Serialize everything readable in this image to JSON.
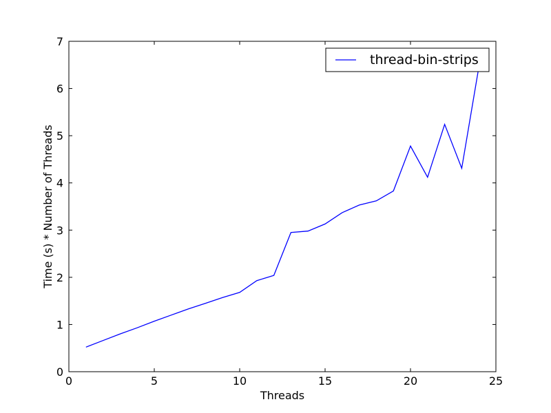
{
  "chart_data": {
    "type": "line",
    "title": "",
    "xlabel": "Threads",
    "ylabel": "Time (s) * Number of Threads",
    "xlim": [
      0,
      25
    ],
    "ylim": [
      0,
      7
    ],
    "xticks": [
      0,
      5,
      10,
      15,
      20,
      25
    ],
    "yticks": [
      0,
      1,
      2,
      3,
      4,
      5,
      6,
      7
    ],
    "grid": false,
    "legend_position": "top-right",
    "series": [
      {
        "name": "thread-bin-strips",
        "color": "#0000ff",
        "x": [
          1,
          2,
          3,
          4,
          5,
          6,
          7,
          8,
          9,
          10,
          11,
          12,
          13,
          14,
          15,
          16,
          17,
          18,
          19,
          20,
          21,
          22,
          23,
          24
        ],
        "y": [
          0.52,
          0.66,
          0.8,
          0.93,
          1.07,
          1.2,
          1.33,
          1.45,
          1.57,
          1.68,
          1.93,
          2.04,
          2.95,
          2.98,
          3.13,
          3.37,
          3.53,
          3.62,
          3.83,
          4.78,
          4.12,
          5.24,
          4.31,
          6.45
        ]
      }
    ]
  }
}
